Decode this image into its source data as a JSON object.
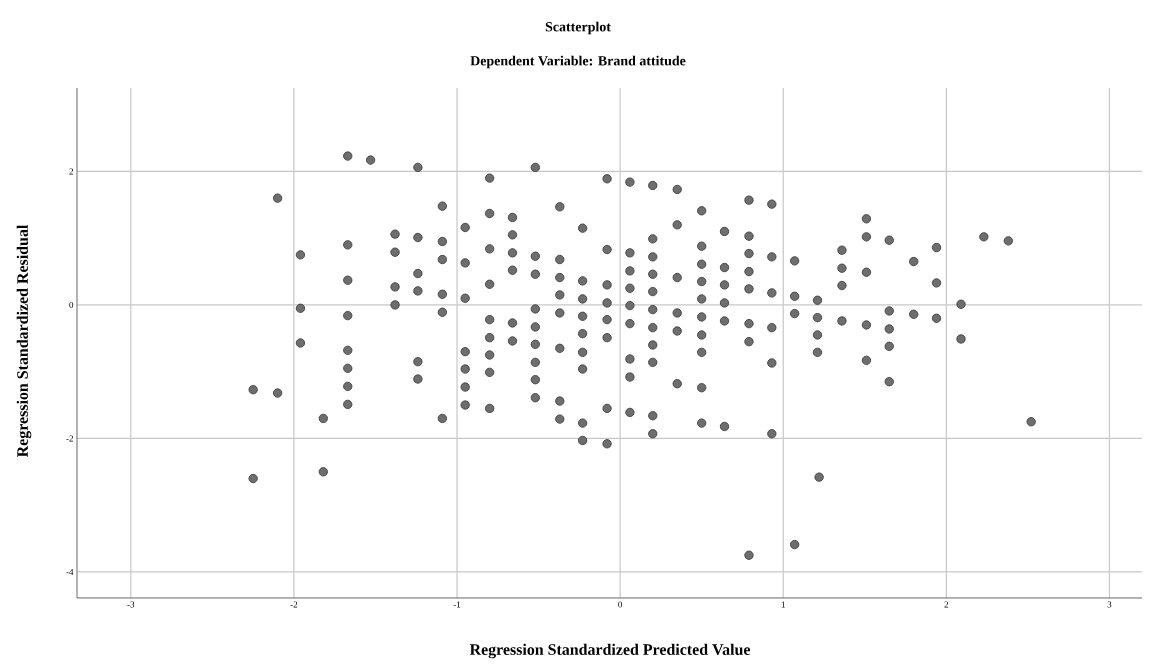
{
  "chart_data": {
    "type": "scatter",
    "title": "Scatterplot",
    "subtitle": "Dependent Variable: Brand attitude",
    "xlabel": "Regression Standardized Predicted Value",
    "ylabel": "Regression Standardized Residual",
    "x": [
      -2.25,
      -2.25,
      -2.1,
      -2.1,
      -1.96,
      -1.96,
      -1.96,
      -1.82,
      -1.82,
      -1.67,
      -1.67,
      -1.67,
      -1.67,
      -1.67,
      -1.67,
      -1.67,
      -1.67,
      -1.53,
      -1.38,
      -1.38,
      -1.38,
      -1.38,
      -1.24,
      -1.24,
      -1.24,
      -1.24,
      -1.24,
      -1.24,
      -1.09,
      -1.09,
      -1.09,
      -1.09,
      -1.09,
      -1.09,
      -0.95,
      -0.95,
      -0.95,
      -0.95,
      -0.95,
      -0.95,
      -0.95,
      -0.8,
      -0.8,
      -0.8,
      -0.8,
      -0.8,
      -0.8,
      -0.8,
      -0.8,
      -0.8,
      -0.66,
      -0.66,
      -0.66,
      -0.66,
      -0.66,
      -0.66,
      -0.52,
      -0.52,
      -0.52,
      -0.52,
      -0.52,
      -0.52,
      -0.52,
      -0.52,
      -0.52,
      -0.37,
      -0.37,
      -0.37,
      -0.37,
      -0.37,
      -0.37,
      -0.37,
      -0.37,
      -0.23,
      -0.23,
      -0.23,
      -0.23,
      -0.23,
      -0.23,
      -0.23,
      -0.23,
      -0.23,
      -0.08,
      -0.08,
      -0.08,
      -0.08,
      -0.08,
      -0.08,
      -0.08,
      -0.08,
      0.06,
      0.06,
      0.06,
      0.06,
      0.06,
      0.06,
      0.06,
      0.06,
      0.06,
      0.2,
      0.2,
      0.2,
      0.2,
      0.2,
      0.2,
      0.2,
      0.2,
      0.2,
      0.2,
      0.2,
      0.35,
      0.35,
      0.35,
      0.35,
      0.35,
      0.35,
      0.5,
      0.5,
      0.5,
      0.5,
      0.5,
      0.5,
      0.5,
      0.5,
      0.5,
      0.5,
      0.64,
      0.64,
      0.64,
      0.64,
      0.64,
      0.64,
      0.79,
      0.79,
      0.79,
      0.79,
      0.79,
      0.79,
      0.79,
      0.79,
      0.93,
      0.93,
      0.93,
      0.93,
      0.93,
      0.93,
      1.07,
      1.07,
      1.07,
      1.07,
      1.21,
      1.21,
      1.21,
      1.21,
      1.22,
      1.36,
      1.36,
      1.36,
      1.36,
      1.51,
      1.51,
      1.51,
      1.51,
      1.51,
      1.65,
      1.65,
      1.65,
      1.65,
      1.65,
      1.8,
      1.8,
      1.94,
      1.94,
      1.94,
      2.09,
      2.09,
      2.23,
      2.38,
      2.52
    ],
    "values": [
      -1.27,
      -2.6,
      1.6,
      -1.32,
      0.75,
      -0.05,
      -0.57,
      -1.7,
      -2.5,
      2.23,
      0.9,
      0.37,
      -0.16,
      -0.68,
      -0.95,
      -1.22,
      -1.49,
      2.17,
      1.06,
      0.79,
      0.27,
      0.0,
      2.06,
      1.01,
      0.47,
      0.21,
      -0.85,
      -1.11,
      1.48,
      0.95,
      0.68,
      0.16,
      -0.11,
      -1.7,
      1.16,
      0.63,
      0.1,
      -0.7,
      -0.96,
      -1.23,
      -1.5,
      1.9,
      1.37,
      0.84,
      0.31,
      -0.22,
      -0.49,
      -0.75,
      -1.01,
      -1.55,
      1.31,
      1.05,
      0.78,
      0.52,
      -0.27,
      -0.54,
      2.06,
      0.73,
      0.46,
      -0.06,
      -0.33,
      -0.59,
      -0.86,
      -1.12,
      -1.39,
      1.47,
      0.68,
      0.41,
      0.15,
      -0.12,
      -0.65,
      -1.44,
      -1.71,
      1.15,
      0.36,
      0.09,
      -0.17,
      -0.43,
      -0.71,
      -0.96,
      -1.77,
      -2.03,
      1.89,
      0.83,
      0.3,
      0.03,
      -0.22,
      -0.49,
      -1.55,
      -2.08,
      1.84,
      0.78,
      0.51,
      0.25,
      -0.01,
      -0.28,
      -0.81,
      -1.08,
      -1.61,
      1.79,
      0.99,
      0.72,
      0.46,
      0.2,
      -0.07,
      -0.34,
      -0.6,
      -0.86,
      -1.66,
      -1.93,
      1.73,
      1.2,
      0.41,
      -0.12,
      -0.39,
      -1.18,
      1.41,
      0.88,
      0.61,
      0.35,
      0.09,
      -0.18,
      -0.45,
      -0.71,
      -1.24,
      -1.77,
      1.1,
      0.56,
      0.3,
      0.03,
      -0.24,
      -1.82,
      1.57,
      1.03,
      0.77,
      0.5,
      0.24,
      -0.28,
      -0.55,
      -3.75,
      1.51,
      0.72,
      0.18,
      -0.34,
      -0.87,
      -1.93,
      0.66,
      0.13,
      -0.13,
      -3.59,
      0.07,
      -0.19,
      -0.45,
      -0.71,
      -2.58,
      0.82,
      0.55,
      0.29,
      -0.24,
      1.29,
      1.02,
      0.49,
      -0.3,
      -0.83,
      0.97,
      -0.09,
      -0.36,
      -0.62,
      -1.15,
      0.65,
      -0.14,
      0.86,
      0.33,
      -0.2,
      0.01,
      -0.51,
      1.02,
      0.96,
      -1.75
    ],
    "color": "#6e6e6e",
    "marker": "circle",
    "grid": true,
    "xlim": [
      -3.33,
      3.2
    ],
    "ylim": [
      -4.39,
      3.25
    ],
    "xticks": [
      -3,
      -2,
      -1,
      0,
      1,
      2,
      3
    ],
    "yticks": [
      -4,
      -2,
      0,
      2
    ]
  }
}
